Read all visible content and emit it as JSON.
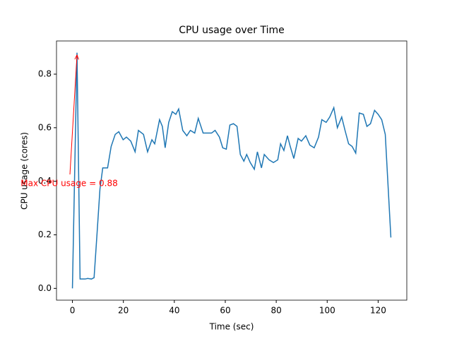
{
  "chart_data": {
    "type": "line",
    "title": "CPU usage over Time",
    "x_label": "Time (sec)",
    "y_label": "CPU usage (cores)",
    "annotation": "Max CPU usage = 0.88",
    "annotation_color": "#ff0000",
    "series": [
      {
        "color": "#1f77b4",
        "x": [
          0,
          1.8,
          3,
          5,
          6,
          7.5,
          8.5,
          9.7,
          10.8,
          11.9,
          13.8,
          15.2,
          16.8,
          18.2,
          19.9,
          21.2,
          22.9,
          24.6,
          25.9,
          27.9,
          29.5,
          31.2,
          32.3,
          34.2,
          35.3,
          36.4,
          37.8,
          39.2,
          40.6,
          41.7,
          43.3,
          44.9,
          46.3,
          48,
          49.4,
          51.3,
          53,
          54.6,
          56,
          57.7,
          59,
          60.4,
          61.8,
          63.2,
          64.6,
          65.9,
          67.3,
          68.4,
          69.8,
          71.4,
          72.6,
          74.2,
          75.3,
          77.2,
          78.9,
          80.6,
          81.7,
          83,
          84.4,
          85.5,
          86.9,
          88.6,
          89.9,
          91.6,
          93.2,
          94.9,
          96.6,
          97.9,
          99.6,
          101,
          102.6,
          104,
          105.7,
          107,
          108.4,
          109.8,
          111.2,
          112.6,
          114.2,
          115.6,
          117,
          118.6,
          120,
          121.4,
          122.8,
          125
        ],
        "values": [
          0,
          0.88,
          0.035,
          0.035,
          0.037,
          0.035,
          0.04,
          0.21,
          0.37,
          0.45,
          0.45,
          0.53,
          0.575,
          0.585,
          0.555,
          0.565,
          0.55,
          0.51,
          0.59,
          0.575,
          0.51,
          0.555,
          0.54,
          0.63,
          0.605,
          0.525,
          0.62,
          0.66,
          0.65,
          0.67,
          0.59,
          0.57,
          0.59,
          0.58,
          0.635,
          0.58,
          0.58,
          0.58,
          0.59,
          0.565,
          0.525,
          0.52,
          0.61,
          0.615,
          0.605,
          0.5,
          0.475,
          0.5,
          0.47,
          0.445,
          0.51,
          0.45,
          0.5,
          0.48,
          0.47,
          0.48,
          0.54,
          0.515,
          0.57,
          0.53,
          0.485,
          0.56,
          0.55,
          0.57,
          0.535,
          0.525,
          0.565,
          0.63,
          0.62,
          0.64,
          0.675,
          0.6,
          0.64,
          0.59,
          0.54,
          0.53,
          0.505,
          0.655,
          0.65,
          0.605,
          0.615,
          0.665,
          0.65,
          0.63,
          0.575,
          0.19
        ]
      }
    ],
    "xlim": [
      -6.25,
      131.25
    ],
    "ylim": [
      -0.044,
      0.924
    ],
    "xticks": [
      0,
      20,
      40,
      60,
      80,
      100,
      120
    ],
    "yticks": [
      {
        "value": 0,
        "label": "0.0"
      },
      0.2,
      0.4,
      0.6,
      0.8
    ],
    "grid": false
  }
}
